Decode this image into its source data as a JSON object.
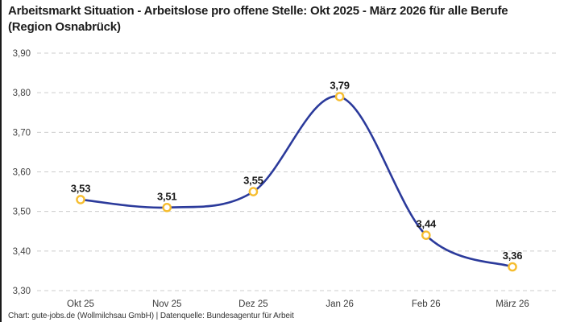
{
  "title": "Arbeitsmarkt Situation - Arbeitslose pro offene Stelle: Okt 2025 - März 2026 für alle Berufe (Region Osnabrück)",
  "footer": "Chart: gute-jobs.de (Wollmilchsau GmbH) | Datenquelle: Bundesagentur für Arbeit",
  "chart_data": {
    "type": "line",
    "title": "Arbeitsmarkt Situation - Arbeitslose pro offene Stelle: Okt 2025 - März 2026 für alle Berufe (Region Osnabrück)",
    "categories": [
      "Okt 25",
      "Nov 25",
      "Dez 25",
      "Jan 26",
      "Feb 26",
      "März 26"
    ],
    "values": [
      3.53,
      3.51,
      3.55,
      3.79,
      3.44,
      3.36
    ],
    "value_labels": [
      "3,53",
      "3,51",
      "3,55",
      "3,79",
      "3,44",
      "3,36"
    ],
    "yticks": [
      3.3,
      3.4,
      3.5,
      3.6,
      3.7,
      3.8,
      3.9
    ],
    "ytick_labels": [
      "3,30",
      "3,40",
      "3,50",
      "3,60",
      "3,70",
      "3,80",
      "3,90"
    ],
    "ylim": [
      3.3,
      3.9
    ],
    "xlabel": "",
    "ylabel": "",
    "grid": "horizontal-dashed",
    "smooth": true,
    "legend": null,
    "colors": {
      "line": "#2b3a9b",
      "marker_stroke": "#f6bd2f",
      "marker_fill": "#ffffff",
      "grid": "#cccccc",
      "ytick_text": "#444444",
      "xtick_text": "#3a3a3a",
      "value_label": "#1a1a1a",
      "title_text": "#1c1c1c",
      "accent_border": "#1a1a1a"
    }
  }
}
